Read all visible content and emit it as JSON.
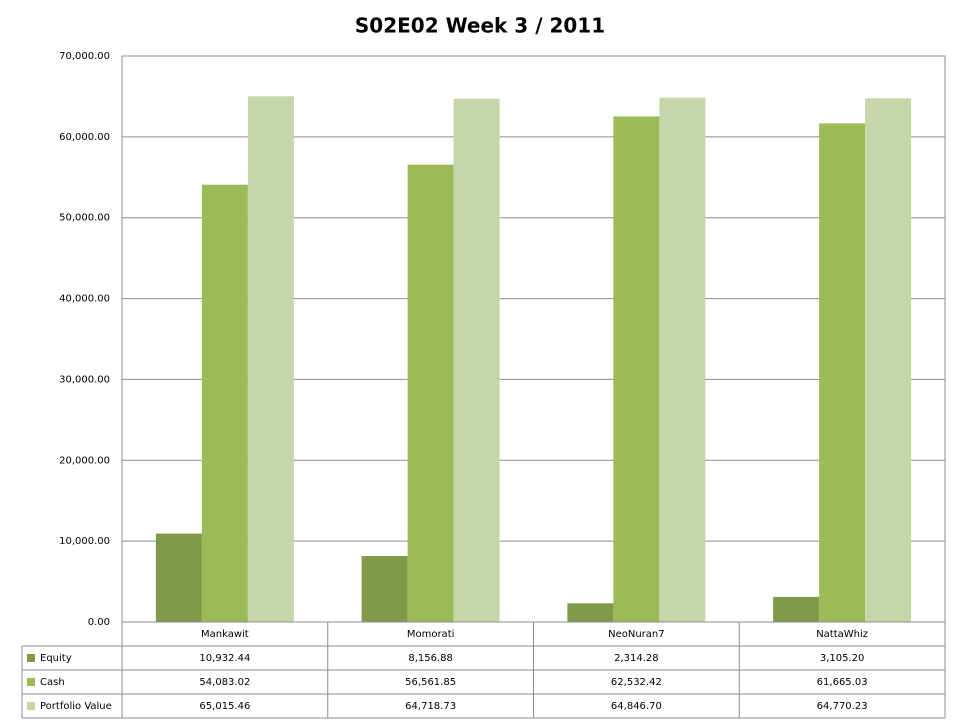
{
  "chart_data": {
    "type": "bar",
    "title": "S02E02 Week 3 / 2011",
    "categories": [
      "Mankawit",
      "Momorati",
      "NeoNuran7",
      "NattaWhiz"
    ],
    "series": [
      {
        "name": "Equity",
        "color": "#7f9a48",
        "values": [
          10932.44,
          8156.88,
          2314.28,
          3105.2
        ],
        "value_labels": [
          "10,932.44",
          "8,156.88",
          "2,314.28",
          "3,105.20"
        ]
      },
      {
        "name": "Cash",
        "color": "#9bbb59",
        "values": [
          54083.02,
          56561.85,
          62532.42,
          61665.03
        ],
        "value_labels": [
          "54,083.02",
          "56,561.85",
          "62,532.42",
          "61,665.03"
        ]
      },
      {
        "name": "Portfolio Value",
        "color": "#c6d6a9",
        "values": [
          65015.46,
          64718.73,
          64846.7,
          64770.23
        ],
        "value_labels": [
          "65,015.46",
          "64,718.73",
          "64,846.70",
          "64,770.23"
        ]
      }
    ],
    "ylim": [
      0,
      70000
    ],
    "yticks": [
      {
        "value": 0,
        "label": "0.00"
      },
      {
        "value": 10000,
        "label": "10,000.00"
      },
      {
        "value": 20000,
        "label": "20,000.00"
      },
      {
        "value": 30000,
        "label": "30,000.00"
      },
      {
        "value": 40000,
        "label": "40,000.00"
      },
      {
        "value": 50000,
        "label": "50,000.00"
      },
      {
        "value": 60000,
        "label": "60,000.00"
      },
      {
        "value": 70000,
        "label": "70,000.00"
      }
    ],
    "grid": true
  }
}
